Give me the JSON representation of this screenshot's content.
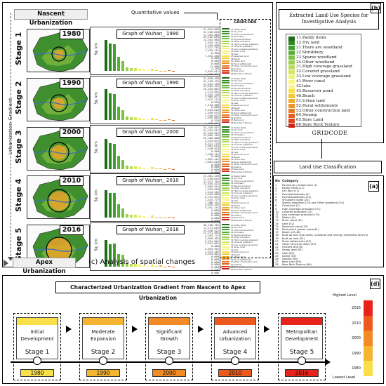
{
  "panel_c": {
    "nascent_label": "Nascent Urbanization",
    "apex_label": "Apex Urbanization",
    "gradient_label": "Urbanization Gradient",
    "quantitative_label": "Quantitative values",
    "gridcode_label": "GRIDCODE",
    "caption": "(c)  Analysis of spatial changes",
    "y_axis_label": "Sq. km",
    "stages": [
      {
        "stage": "Stage 1",
        "year": "1980",
        "graph_title": "Graph of Wuhan_ 1980"
      },
      {
        "stage": "Stage 2",
        "year": "1990",
        "graph_title": "Graph of Wuhan_ 1990"
      },
      {
        "stage": "Stage 3",
        "year": "2000",
        "graph_title": "Graph of Wuhan_ 2000"
      },
      {
        "stage": "Stage 4",
        "year": "2010",
        "graph_title": "Graph of Wuhan_ 2010"
      },
      {
        "stage": "Stage 5",
        "year": "2016",
        "graph_title": "Graph of Wuhan_ 2016"
      }
    ],
    "legend_items": [
      "11 Paddy fields",
      "12 Dry land",
      "21 There are woodland",
      "22 Shrubbery",
      "23 Sparse woodland",
      "24 Other woodland",
      "31 High coverage grassland",
      "32 Covered grassland",
      "33 Low coverage grassland",
      "41 River canal",
      "42 lake",
      "43 Reservoir pond",
      "46 Beach",
      "51 Urban land",
      "52 Rural settlements",
      "53 Other construction land",
      "64 Swamp",
      "65 Bare Land",
      "66 Bare Rock Texture"
    ]
  },
  "panel_b": {
    "tag": "(b)",
    "title": "Extracted Land-Use Species  for Investigative Analysis",
    "gridcode_label": "GRIDCODE",
    "items": [
      {
        "label": "11.Paddy fields",
        "color": "#1f6b1a"
      },
      {
        "label": "12 Dry land",
        "color": "#2e8b22"
      },
      {
        "label": "21.There are woodland",
        "color": "#3f9e2c"
      },
      {
        "label": "22.Shrubbery",
        "color": "#5aae36"
      },
      {
        "label": "23.Sparse woodland",
        "color": "#7cc142"
      },
      {
        "label": "24.Other woodland",
        "color": "#9ccf4c"
      },
      {
        "label": "31.High coverage grassland",
        "color": "#b7dc56"
      },
      {
        "label": "32.Covered grassland",
        "color": "#d2e85e"
      },
      {
        "label": "33.Low coverage grassland",
        "color": "#ecf27a"
      },
      {
        "label": "41.River canal",
        "color": "#f7f77c"
      },
      {
        "label": "42.lake",
        "color": "#fbf29a"
      },
      {
        "label": "43.Reservoir pond",
        "color": "#f9e04a"
      },
      {
        "label": "46.Beach",
        "color": "#f4c735"
      },
      {
        "label": "51.Urban land",
        "color": "#f2ad2a"
      },
      {
        "label": "52.Rural settlements",
        "color": "#ef9324"
      },
      {
        "label": "53.Other construction land",
        "color": "#ea7a22"
      },
      {
        "label": "64.Swamp",
        "color": "#e45f1f"
      },
      {
        "label": "65.Bare Land",
        "color": "#dc421b"
      },
      {
        "label": "66.Bare Rock Texture",
        "color": "#cf2417"
      }
    ]
  },
  "panel_a": {
    "tag": "(a)",
    "title": "Land Use Classification",
    "header_no": "No",
    "header_category": "Category",
    "rows": [
      "Farmlands / Arable land (1)",
      "Paddy Fields (11)",
      "Dry land (12)",
      "Forest/woodlands (2)",
      "Forest/woodlands (21)",
      "Shrubbery lands (22)",
      "Sparse woodland (23) and Other woodland (24)",
      "Grassland (3)",
      "High coverage grassland (31)",
      "Covered grassland (32)",
      "Low coverage grassland (33)",
      "Waters (4)",
      "River canal (41)",
      "Lake (42)",
      "Reservoir pond (43)",
      "Permanent glacier snow(44)",
      "Beach (45-46)",
      "Built-up and rural areas, industrial and mining, residential land (5)",
      "Built-up land (51)",
      "Rural settlements (52)",
      "Other structure lands (53)",
      "Unused land (6)",
      "Sandy land (61)",
      "Gobi (62)",
      "Saline (63)",
      "Swamp (64)",
      "Bare Land (65)",
      "Bare Rock Texture (66)"
    ]
  },
  "panel_d": {
    "tag": "(d)",
    "title": "Characterized Urbanization Gradient from Nascent to Apex Urbanization",
    "highest_label": "Highest Level",
    "lowest_label": "Lowest Level",
    "scale_years": [
      "2016",
      "2010",
      "2000",
      "1990",
      "1980"
    ],
    "scale_colors": [
      "#e8231c",
      "#ee5a1e",
      "#f28a25",
      "#f5b431",
      "#f9e04a"
    ],
    "stages": [
      {
        "line1": "Initial",
        "line2": "Development",
        "stage": "Stage 1",
        "year": "1980",
        "color": "#f9e04a"
      },
      {
        "line1": "Moderate",
        "line2": "Expansion",
        "stage": "Stage 2",
        "year": "1990",
        "color": "#f5b431"
      },
      {
        "line1": "Significant",
        "line2": "Growth",
        "stage": "Stage 3",
        "year": "2000",
        "color": "#f28a25"
      },
      {
        "line1": "Advanced",
        "line2": "Urbanization",
        "stage": "Stage 4",
        "year": "2010",
        "color": "#ee5a1e"
      },
      {
        "line1": "Metropolitan",
        "line2": "Development",
        "stage": "Stage 5",
        "year": "2016",
        "color": "#e8231c"
      }
    ]
  },
  "chart_data": [
    {
      "type": "bar",
      "title": "Graph of Wuhan_ 1980",
      "ylabel": "Sq. km",
      "values": [
        100,
        88,
        86,
        45,
        32,
        12,
        10,
        8,
        6,
        4,
        3,
        6,
        2,
        1,
        1,
        2,
        1,
        0,
        0
      ],
      "colors": [
        "#1f6b1a",
        "#2e8b22",
        "#3f9e2c",
        "#5aae36",
        "#7cc142",
        "#9ccf4c",
        "#b7dc56",
        "#d2e85e",
        "#ecf27a",
        "#f7f77c",
        "#fbf29a",
        "#f9e04a",
        "#f4c735",
        "#f2ad2a",
        "#ef9324",
        "#ea7a22",
        "#e45f1f",
        "#dc421b",
        "#cf2417"
      ],
      "value_labels": [
        "31,813.005",
        "31,100.043",
        "11,354.085",
        "22,102.055",
        "22,553.985",
        "3,455.741",
        "3,445.000",
        "3,417.741",
        "1,455.111",
        "0.990",
        "7,454.440",
        "0.000",
        "0.050",
        "0.000",
        "11,990",
        "1,105",
        "3,679.611",
        "1,450.071",
        "0.000"
      ]
    },
    {
      "type": "bar",
      "title": "Graph of Wuhan_ 1990",
      "ylabel": "Sq. km",
      "values": [
        100,
        86,
        84,
        44,
        31,
        12,
        10,
        8,
        6,
        4,
        3,
        6,
        2,
        1,
        1,
        2,
        1,
        0,
        0
      ],
      "colors": [
        "#1f6b1a",
        "#2e8b22",
        "#3f9e2c",
        "#5aae36",
        "#7cc142",
        "#9ccf4c",
        "#b7dc56",
        "#d2e85e",
        "#ecf27a",
        "#f7f77c",
        "#fbf29a",
        "#f9e04a",
        "#f4c735",
        "#f2ad2a",
        "#ef9324",
        "#ea7a22",
        "#e45f1f",
        "#dc421b",
        "#cf2417"
      ],
      "value_labels": [
        "31,830.458",
        "31,165.131",
        "21,431.150",
        "22,503.121",
        "23,533.861",
        "2,213.041",
        "3,442.120",
        "3,005.071",
        "1,423.111",
        "0.990",
        "7,154.380",
        "0.000",
        "3,163.610",
        "1,459.931",
        "1,416.621",
        "1,455.002",
        "0.320",
        "1,490.041",
        "0.000"
      ]
    },
    {
      "type": "bar",
      "title": "Graph of Wuhan_ 2000",
      "ylabel": "Sq. km",
      "values": [
        98,
        84,
        82,
        43,
        30,
        11,
        10,
        8,
        6,
        4,
        3,
        6,
        2,
        2,
        1,
        2,
        1,
        0,
        0
      ],
      "colors": [
        "#1f6b1a",
        "#2e8b22",
        "#3f9e2c",
        "#5aae36",
        "#7cc142",
        "#9ccf4c",
        "#b7dc56",
        "#d2e85e",
        "#ecf27a",
        "#f7f77c",
        "#fbf29a",
        "#f9e04a",
        "#f4c735",
        "#f2ad2a",
        "#ef9324",
        "#ea7a22",
        "#e45f1f",
        "#dc421b",
        "#cf2417"
      ],
      "value_labels": [
        "31,310.017",
        "31,181.517",
        "21,445.551",
        "22,602.161",
        "22,405.000",
        "3,415.071",
        "3,411.775",
        "3,061.615",
        "1,430.070",
        "0.990",
        "7,200.111",
        "0.000",
        "1,891.411",
        "1,601.610",
        "0.000",
        "0.000",
        "0.000",
        "0.000",
        "0.000"
      ]
    },
    {
      "type": "bar",
      "title": "Graph of Wuhan_ 2010",
      "ylabel": "Sq. km",
      "values": [
        88,
        79,
        80,
        44,
        30,
        12,
        10,
        8,
        6,
        4,
        3,
        6,
        2,
        3,
        1,
        2,
        1,
        0,
        0
      ],
      "colors": [
        "#1f6b1a",
        "#2e8b22",
        "#3f9e2c",
        "#5aae36",
        "#7cc142",
        "#9ccf4c",
        "#b7dc56",
        "#d2e85e",
        "#ecf27a",
        "#f7f77c",
        "#fbf29a",
        "#f9e04a",
        "#f4c735",
        "#f2ad2a",
        "#ef9324",
        "#ea7a22",
        "#e45f1f",
        "#dc421b",
        "#cf2417"
      ],
      "value_labels": [
        "21,381.135",
        "11,410.641",
        "21,517.741",
        "22,555.421",
        "3,855.941",
        "1,333.030",
        "1,414.414",
        "1,545.000",
        "6,751.041",
        "1,515.777",
        "1,386.331",
        "4,455.101",
        "5,201.241",
        "0.000",
        "0.000",
        "0.000",
        "0.000",
        "0.000",
        "0.000"
      ]
    },
    {
      "type": "bar",
      "title": "Graph of Wuhan_ 2016",
      "ylabel": "Sq. km",
      "values": [
        86,
        73,
        75,
        42,
        38,
        12,
        10,
        8,
        6,
        4,
        3,
        6,
        2,
        5,
        1,
        2,
        1,
        0,
        0
      ],
      "colors": [
        "#1f6b1a",
        "#2e8b22",
        "#3f9e2c",
        "#5aae36",
        "#7cc142",
        "#9ccf4c",
        "#b7dc56",
        "#d2e85e",
        "#ecf27a",
        "#f7f77c",
        "#fbf29a",
        "#f9e04a",
        "#f4c735",
        "#f2ad2a",
        "#ef9324",
        "#ea7a22",
        "#e45f1f",
        "#dc421b",
        "#cf2417"
      ],
      "value_labels": [
        "40,180.761",
        "11,111.815",
        "23,536.521",
        "21,211.501",
        "4,263.171",
        "3,030.461",
        "3,511.641",
        "4,251.001",
        "0.000",
        "4,079.931",
        "1,475.181",
        "5,453.001",
        "0.000",
        "0.000",
        "0.000",
        "0.000",
        "0.000",
        "0.000",
        "0.000"
      ]
    }
  ]
}
